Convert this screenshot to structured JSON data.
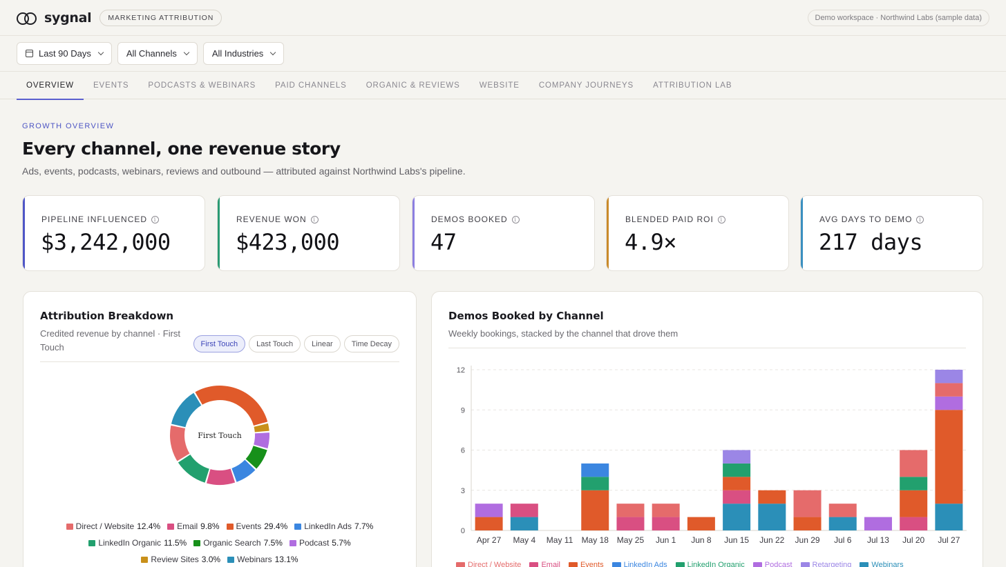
{
  "app": {
    "brand": "sygnal",
    "section_chip": "MARKETING ATTRIBUTION",
    "workspace": "Demo workspace · Northwind Labs (sample data)"
  },
  "filters": {
    "date": "Last 90 Days",
    "channels": "All Channels",
    "industries": "All Industries"
  },
  "tabs": [
    "OVERVIEW",
    "EVENTS",
    "PODCASTS & WEBINARS",
    "PAID CHANNELS",
    "ORGANIC & REVIEWS",
    "WEBSITE",
    "COMPANY JOURNEYS",
    "ATTRIBUTION LAB"
  ],
  "header": {
    "eyebrow": "GROWTH OVERVIEW",
    "title": "Every channel, one revenue story",
    "subtitle": "Ads, events, podcasts, webinars, reviews and outbound — attributed against Northwind Labs's pipeline."
  },
  "kpis": [
    {
      "label": "PIPELINE INFLUENCED",
      "value": "$3,242,000",
      "color": "#4f56c6"
    },
    {
      "label": "REVENUE WON",
      "value": "$423,000",
      "color": "#2a9a73"
    },
    {
      "label": "DEMOS BOOKED",
      "value": "47",
      "color": "#8c7ee0"
    },
    {
      "label": "BLENDED PAID ROI",
      "value": "4.9×",
      "color": "#c98a2a"
    },
    {
      "label": "AVG DAYS TO DEMO",
      "value": "217 days",
      "color": "#3a8fc0"
    }
  ],
  "attribution": {
    "title": "Attribution Breakdown",
    "subtitle": "Credited revenue by channel · First Touch",
    "models": [
      "First Touch",
      "Last Touch",
      "Linear",
      "Time Decay"
    ],
    "active_model": "First Touch",
    "donut_center": "First Touch",
    "slices": [
      {
        "name": "Direct / Website",
        "pct": 12.4,
        "label": "12.4%",
        "color": "#e56b6b"
      },
      {
        "name": "Email",
        "pct": 9.8,
        "label": "9.8%",
        "color": "#d94f82"
      },
      {
        "name": "Events",
        "pct": 29.4,
        "label": "29.4%",
        "color": "#e05a2a"
      },
      {
        "name": "LinkedIn Ads",
        "pct": 7.7,
        "label": "7.7%",
        "color": "#3b86e0"
      },
      {
        "name": "LinkedIn Organic",
        "pct": 11.5,
        "label": "11.5%",
        "color": "#22a06e"
      },
      {
        "name": "Organic Search",
        "pct": 7.5,
        "label": "7.5%",
        "color": "#17901a"
      },
      {
        "name": "Podcast",
        "pct": 5.7,
        "label": "5.7%",
        "color": "#b06de0"
      },
      {
        "name": "Review Sites",
        "pct": 3.0,
        "label": "3.0%",
        "color": "#c9901a"
      },
      {
        "name": "Webinars",
        "pct": 13.1,
        "label": "13.1%",
        "color": "#2b8fb8"
      }
    ]
  },
  "demos": {
    "title": "Demos Booked by Channel",
    "subtitle": "Weekly bookings, stacked by the channel that drove them"
  },
  "chart_data": {
    "type": "bar",
    "stacked": true,
    "categories": [
      "Apr 27",
      "May 4",
      "May 11",
      "May 18",
      "May 25",
      "Jun 1",
      "Jun 8",
      "Jun 15",
      "Jun 22",
      "Jun 29",
      "Jul 6",
      "Jul 13",
      "Jul 20",
      "Jul 27"
    ],
    "ylim": [
      0,
      12
    ],
    "yticks": [
      0,
      3,
      6,
      9,
      12
    ],
    "grid": true,
    "series": [
      {
        "name": "Direct / Website",
        "color": "#e56b6b",
        "values": [
          0,
          0,
          0,
          0,
          1,
          1,
          0,
          0,
          0,
          2,
          1,
          0,
          2,
          1
        ]
      },
      {
        "name": "Email",
        "color": "#d94f82",
        "values": [
          0,
          1,
          0,
          0,
          1,
          1,
          0,
          1,
          0,
          0,
          0,
          0,
          1,
          0
        ]
      },
      {
        "name": "Events",
        "color": "#e05a2a",
        "values": [
          1,
          0,
          0,
          3,
          0,
          0,
          1,
          1,
          1,
          1,
          0,
          0,
          2,
          7
        ]
      },
      {
        "name": "LinkedIn Ads",
        "color": "#3b86e0",
        "values": [
          0,
          0,
          0,
          1,
          0,
          0,
          0,
          0,
          0,
          0,
          0,
          0,
          0,
          0
        ]
      },
      {
        "name": "LinkedIn Organic",
        "color": "#22a06e",
        "values": [
          0,
          0,
          0,
          1,
          0,
          0,
          0,
          1,
          0,
          0,
          0,
          0,
          1,
          0
        ]
      },
      {
        "name": "Podcast",
        "color": "#b06de0",
        "values": [
          1,
          0,
          0,
          0,
          0,
          0,
          0,
          0,
          0,
          0,
          0,
          1,
          0,
          1
        ]
      },
      {
        "name": "Retargeting",
        "color": "#9b86e6",
        "values": [
          0,
          0,
          0,
          0,
          0,
          0,
          0,
          1,
          0,
          0,
          0,
          0,
          0,
          1
        ]
      },
      {
        "name": "Webinars",
        "color": "#2b8fb8",
        "values": [
          0,
          1,
          0,
          0,
          0,
          0,
          0,
          2,
          2,
          0,
          1,
          0,
          0,
          2
        ]
      }
    ]
  }
}
